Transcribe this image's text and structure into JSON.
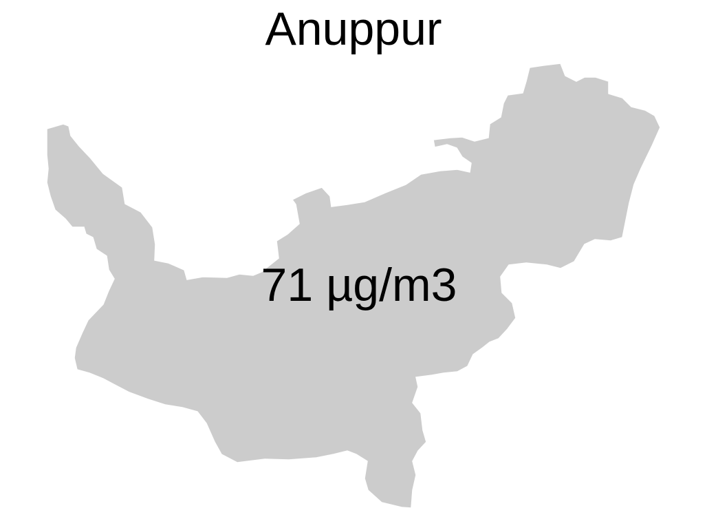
{
  "map": {
    "title": "Anuppur",
    "region_value_label": "71 µg/m3",
    "region_fill_color": "#cccccc",
    "background_color": "#ffffff",
    "text_color": "#000000"
  }
}
